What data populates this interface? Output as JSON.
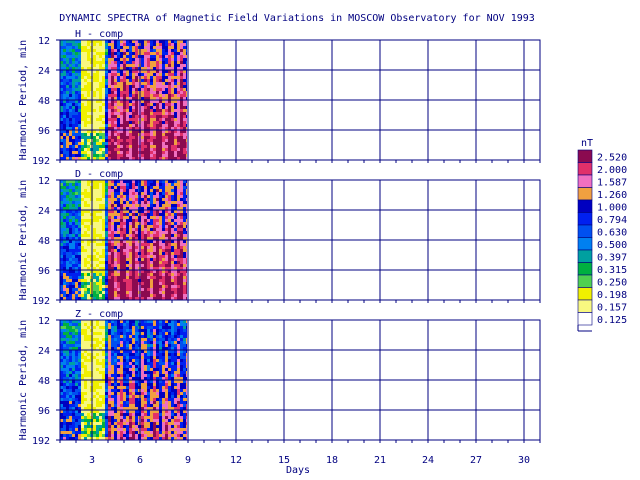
{
  "chart_data": {
    "type": "heatmap",
    "title": "DYNAMIC SPECTRA of Magnetic Field Variations in MOSCOW Observatory for NOV 1993",
    "xlabel": "Days",
    "ylabel": "Harmonic Period, min",
    "x_ticks": [
      "3",
      "6",
      "9",
      "12",
      "15",
      "18",
      "21",
      "24",
      "27",
      "30"
    ],
    "y_ticks": [
      "12",
      "24",
      "48",
      "96",
      "192"
    ],
    "xlim": [
      1,
      31
    ],
    "data_extent_days": [
      1,
      9
    ],
    "bands": [
      {
        "name": "H - comp",
        "quiet_interval_days": [
          2.3,
          3.7
        ],
        "active_interval_days": [
          4,
          9
        ]
      },
      {
        "name": "D - comp",
        "quiet_interval_days": [
          2.3,
          3.7
        ],
        "active_interval_days": [
          4,
          9
        ]
      },
      {
        "name": "Z - comp",
        "quiet_interval_days": [
          2.3,
          3.7
        ],
        "active_interval_days": [
          4,
          9
        ]
      }
    ],
    "legend": {
      "unit": "nT",
      "levels": [
        "2.520",
        "2.000",
        "1.587",
        "1.260",
        "1.000",
        "0.794",
        "0.630",
        "0.500",
        "0.397",
        "0.315",
        "0.250",
        "0.198",
        "0.157",
        "0.125"
      ],
      "colors": [
        "#8B0A50",
        "#E0306A",
        "#F070C0",
        "#F0A040",
        "#0000C0",
        "#0020F0",
        "#0050F0",
        "#0080F0",
        "#00A0A0",
        "#00B040",
        "#50D050",
        "#F0F000",
        "#F8F880",
        "#FFFFFF"
      ]
    }
  }
}
